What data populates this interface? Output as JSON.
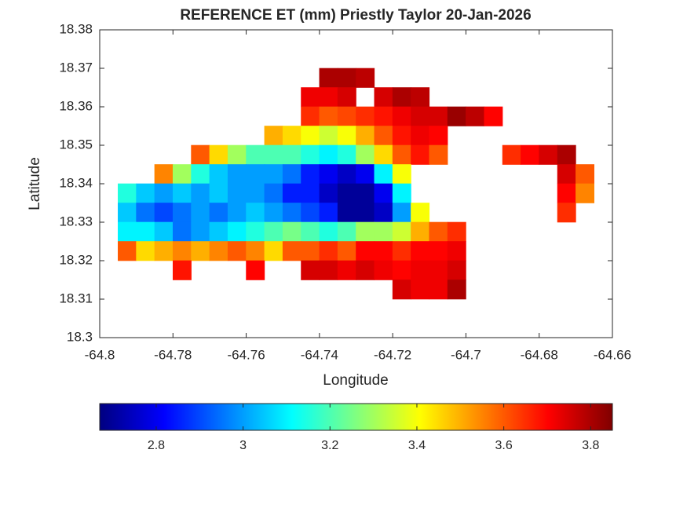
{
  "chart_data": {
    "type": "contour",
    "title": "REFERENCE ET (mm) Priestly Taylor 20-Jan-2026",
    "xlabel": "Longitude",
    "ylabel": "Latitude",
    "xlim": [
      -64.8,
      -64.66
    ],
    "xticks": [
      -64.8,
      -64.78,
      -64.76,
      -64.74,
      -64.72,
      -64.7,
      -64.68,
      -64.66
    ],
    "ylim": [
      18.3,
      18.38
    ],
    "yticks": [
      18.3,
      18.31,
      18.32,
      18.33,
      18.34,
      18.35,
      18.36,
      18.37,
      18.38
    ],
    "colormap": "jet",
    "colorbar": {
      "clim": [
        2.67,
        3.85
      ],
      "ticks": [
        2.8,
        3,
        3.2,
        3.4,
        3.6,
        3.8
      ]
    },
    "x": [
      -64.7925,
      -64.7875,
      -64.7825,
      -64.7775,
      -64.7725,
      -64.7675,
      -64.7625,
      -64.7575,
      -64.7525,
      -64.7475,
      -64.7425,
      -64.7375,
      -64.7325,
      -64.7275,
      -64.7225,
      -64.7175,
      -64.7125,
      -64.7075,
      -64.7025,
      -64.6975,
      -64.6925,
      -64.6875,
      -64.6825,
      -64.6775,
      -64.6725,
      -64.6675
    ],
    "y": [
      18.3675,
      18.3625,
      18.3575,
      18.3525,
      18.3475,
      18.3425,
      18.3375,
      18.3325,
      18.3275,
      18.3225,
      18.3175,
      18.3125
    ],
    "z": [
      [
        null,
        null,
        null,
        null,
        null,
        null,
        null,
        null,
        null,
        null,
        null,
        3.8,
        3.8,
        3.78,
        null,
        null,
        null,
        null,
        null,
        null,
        null,
        null,
        null,
        null,
        null,
        null
      ],
      [
        null,
        null,
        null,
        null,
        null,
        null,
        null,
        null,
        null,
        null,
        3.72,
        3.72,
        3.75,
        null,
        3.75,
        3.8,
        3.78,
        null,
        null,
        null,
        null,
        null,
        null,
        null,
        null,
        null
      ],
      [
        null,
        null,
        null,
        null,
        null,
        null,
        null,
        null,
        null,
        null,
        3.65,
        3.6,
        3.62,
        3.65,
        3.68,
        3.72,
        3.75,
        3.75,
        3.82,
        3.78,
        3.7,
        null,
        null,
        null,
        null,
        null
      ],
      [
        null,
        null,
        null,
        null,
        null,
        null,
        null,
        null,
        3.5,
        3.45,
        3.4,
        3.35,
        3.4,
        3.5,
        3.6,
        3.68,
        3.72,
        3.7,
        null,
        null,
        null,
        null,
        null,
        null,
        null,
        null
      ],
      [
        null,
        null,
        null,
        null,
        3.6,
        3.45,
        3.3,
        3.2,
        3.2,
        3.2,
        3.15,
        3.1,
        3.15,
        3.3,
        3.45,
        3.6,
        3.68,
        3.6,
        null,
        null,
        null,
        3.65,
        3.7,
        3.75,
        3.8,
        null
      ],
      [
        null,
        null,
        3.55,
        3.3,
        3.15,
        3.05,
        3.0,
        3.0,
        3.0,
        2.95,
        2.85,
        2.8,
        2.75,
        2.8,
        3.1,
        3.4,
        null,
        null,
        null,
        null,
        null,
        null,
        null,
        null,
        3.75,
        3.6
      ],
      [
        3.15,
        3.05,
        3.0,
        3.05,
        3.0,
        3.05,
        3.0,
        3.0,
        2.95,
        2.85,
        2.85,
        2.75,
        2.7,
        2.7,
        2.8,
        3.1,
        null,
        null,
        null,
        null,
        null,
        null,
        null,
        null,
        3.7,
        3.55
      ],
      [
        3.05,
        2.95,
        2.9,
        2.95,
        3.0,
        2.95,
        3.0,
        3.05,
        3.0,
        2.95,
        2.9,
        2.85,
        2.7,
        2.7,
        2.75,
        3.0,
        3.4,
        null,
        null,
        null,
        null,
        null,
        null,
        null,
        3.65,
        null
      ],
      [
        3.1,
        3.1,
        3.05,
        2.95,
        3.0,
        3.05,
        3.1,
        3.15,
        3.2,
        3.25,
        3.2,
        3.15,
        3.2,
        3.3,
        3.3,
        3.35,
        3.5,
        3.6,
        3.65,
        null,
        null,
        null,
        null,
        null,
        null,
        null
      ],
      [
        3.6,
        3.45,
        3.5,
        3.55,
        3.5,
        3.55,
        3.6,
        3.55,
        3.45,
        3.6,
        3.6,
        3.65,
        3.6,
        3.7,
        3.7,
        3.65,
        3.7,
        3.7,
        3.72,
        null,
        null,
        null,
        null,
        null,
        null,
        null
      ],
      [
        null,
        null,
        null,
        3.68,
        null,
        null,
        null,
        3.7,
        null,
        null,
        3.75,
        3.75,
        3.72,
        3.75,
        3.72,
        3.7,
        3.72,
        3.72,
        3.75,
        null,
        null,
        null,
        null,
        null,
        null,
        null
      ],
      [
        null,
        null,
        null,
        null,
        null,
        null,
        null,
        null,
        null,
        null,
        null,
        null,
        null,
        null,
        null,
        3.75,
        3.72,
        3.72,
        3.8,
        null,
        null,
        null,
        null,
        null,
        null,
        null
      ]
    ]
  }
}
